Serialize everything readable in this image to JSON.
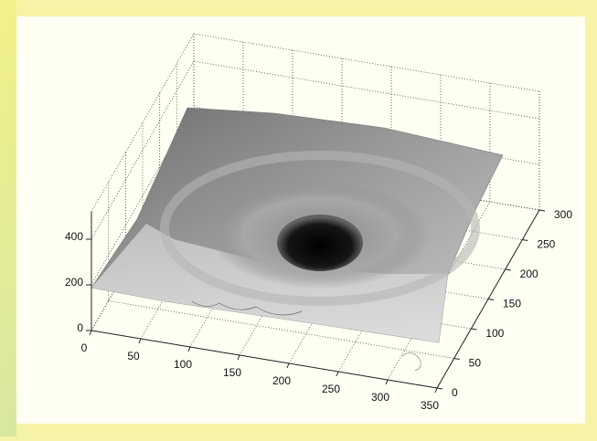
{
  "chart_data": {
    "type": "surface3d",
    "xlim": [
      0,
      350
    ],
    "xticks": [
      0,
      50,
      100,
      150,
      200,
      250,
      300,
      350
    ],
    "ylim": [
      0,
      300
    ],
    "yticks": [
      0,
      50,
      100,
      150,
      200,
      250,
      300
    ],
    "zlim": [
      0,
      520
    ],
    "zticks": [
      0,
      200,
      400
    ],
    "grid": true,
    "colormap": "gray"
  }
}
